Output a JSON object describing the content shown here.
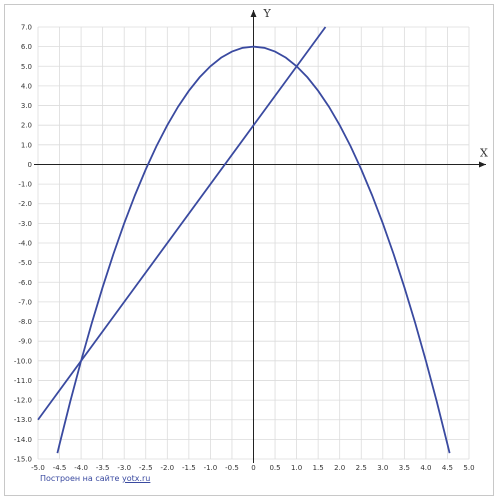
{
  "chart_data": {
    "type": "line",
    "xlabel": "X",
    "ylabel": "Y",
    "xlim": [
      -5.0,
      5.0
    ],
    "ylim": [
      -15.0,
      7.0
    ],
    "x_step": 0.5,
    "y_step": 1.0,
    "x_ticks": [
      "-5.0",
      "-4.5",
      "-4.0",
      "-3.5",
      "-3.0",
      "-2.5",
      "-2.0",
      "-1.5",
      "-1.0",
      "-0.5",
      "0",
      "0.5",
      "1.0",
      "1.5",
      "2.0",
      "2.5",
      "3.0",
      "3.5",
      "4.0",
      "4.5",
      "5.0"
    ],
    "y_ticks": [
      "7.0",
      "6.0",
      "5.0",
      "4.0",
      "3.0",
      "2.0",
      "1.0",
      "0",
      "-1.0",
      "-2.0",
      "-3.0",
      "-4.0",
      "-5.0",
      "-6.0",
      "-7.0",
      "-8.0",
      "-9.0",
      "-10.0",
      "-11.0",
      "-12.0",
      "-13.0",
      "-14.0",
      "-15.0"
    ],
    "grid": true,
    "line_color": "#3a4aa0",
    "series": [
      {
        "x": [
          -4.55,
          -4.5,
          -4.25,
          -4.0,
          -3.75,
          -3.5,
          -3.25,
          -3.0,
          -2.75,
          -2.5,
          -2.25,
          -2.0,
          -1.75,
          -1.5,
          -1.25,
          -1.0,
          -0.75,
          -0.5,
          -0.25,
          0,
          0.25,
          0.5,
          0.75,
          1.0,
          1.25,
          1.5,
          1.75,
          2.0,
          2.25,
          2.5,
          2.75,
          3.0,
          3.25,
          3.5,
          3.75,
          4.0,
          4.25,
          4.5,
          4.55
        ],
        "y": [
          -14.7,
          -14.25,
          -12.06,
          -10.0,
          -8.06,
          -6.25,
          -4.56,
          -3.0,
          -1.56,
          -0.25,
          0.94,
          2.0,
          2.94,
          3.75,
          4.44,
          5.0,
          5.44,
          5.75,
          5.94,
          6.0,
          5.94,
          5.75,
          5.44,
          5.0,
          4.44,
          3.75,
          2.94,
          2.0,
          0.94,
          -0.25,
          -1.56,
          -3.0,
          -4.56,
          -6.25,
          -8.06,
          -10.0,
          -12.06,
          -14.25,
          -14.7
        ]
      },
      {
        "x": [
          -5.0,
          1.67
        ],
        "y": [
          -13.0,
          7.0
        ]
      }
    ]
  },
  "credit": {
    "text": "Построен на сайте",
    "link": "yotx.ru"
  }
}
